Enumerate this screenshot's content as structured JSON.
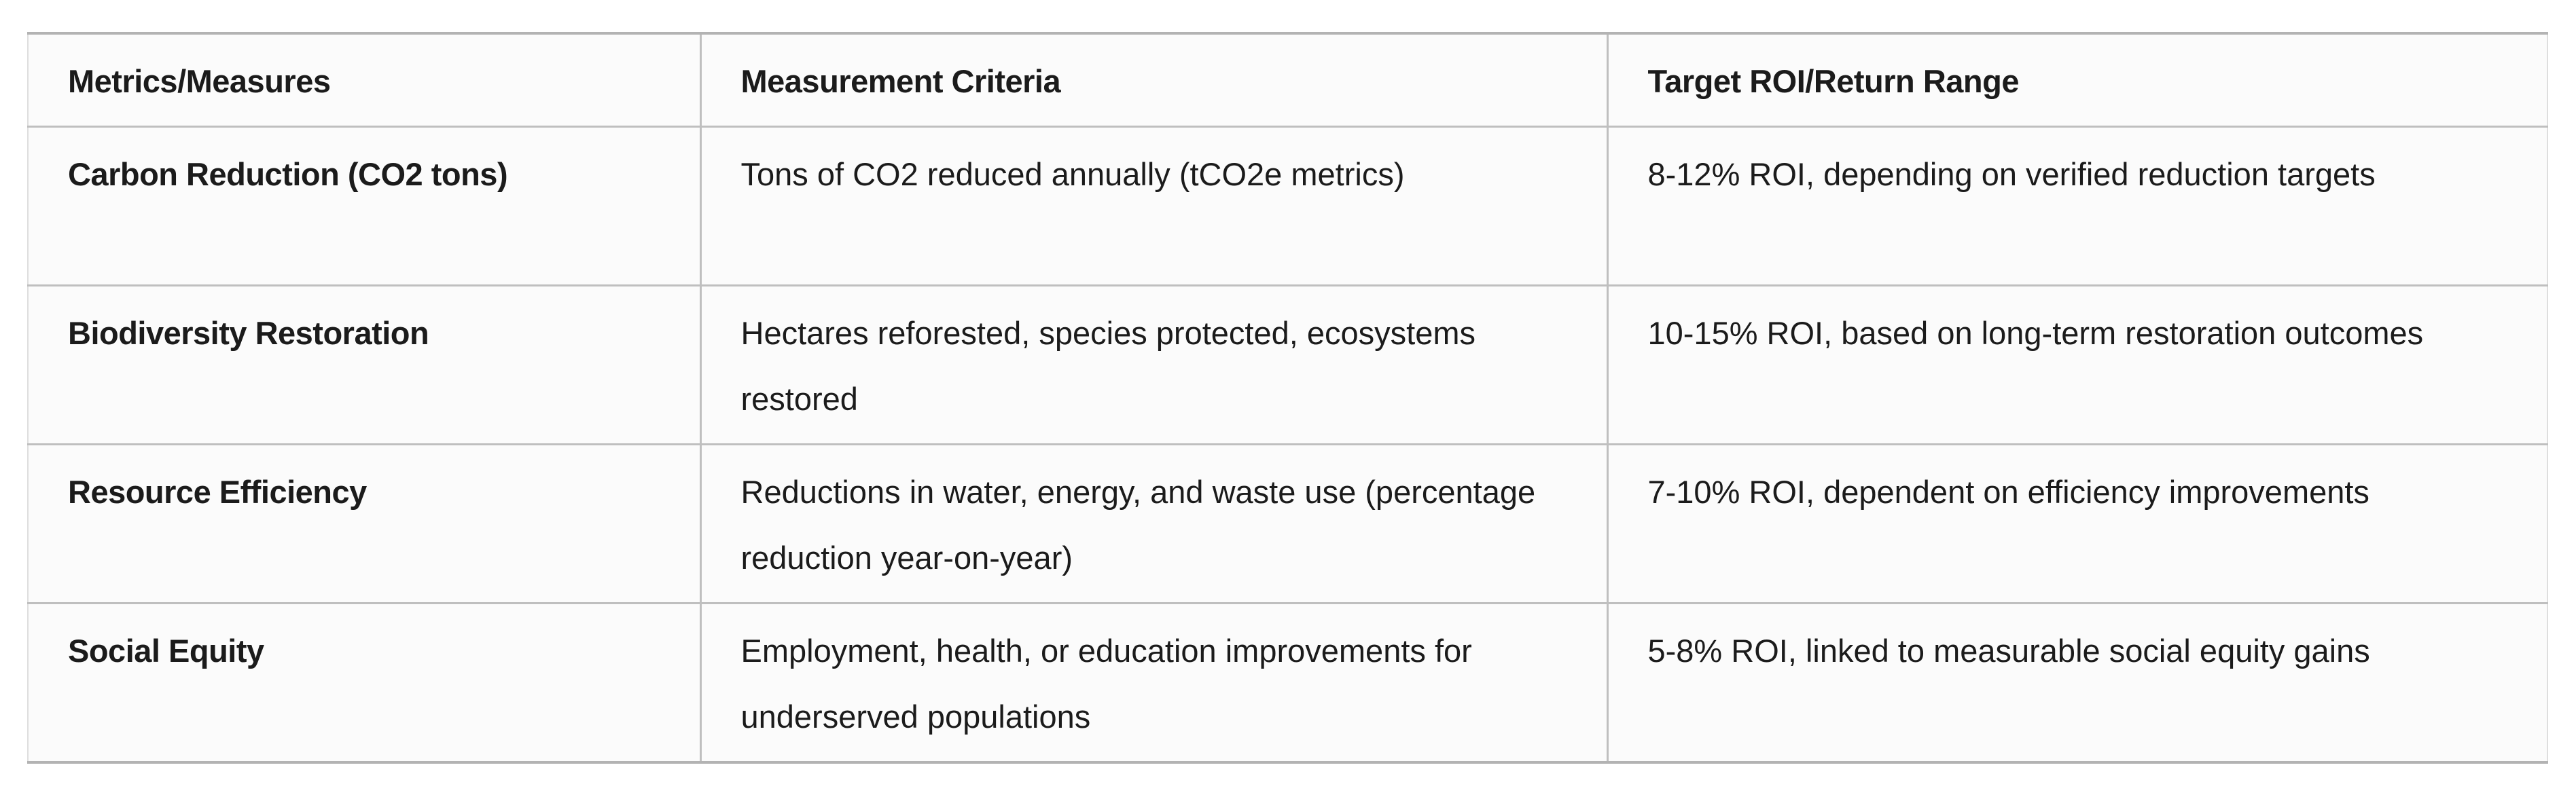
{
  "table": {
    "columns": [
      {
        "label": "Metrics/Measures"
      },
      {
        "label": "Measurement Criteria"
      },
      {
        "label": "Target ROI/Return Range"
      }
    ],
    "rows": [
      {
        "metric": "Carbon Reduction (CO2 tons)",
        "criteria": "Tons of CO2 reduced annually (tCO2e metrics)",
        "roi": "8-12% ROI, depending on verified reduction targets"
      },
      {
        "metric": "Biodiversity Restoration",
        "criteria": "Hectares reforested, species protected, ecosystems restored",
        "roi": "10-15% ROI, based on long-term restoration outcomes"
      },
      {
        "metric": "Resource Efficiency",
        "criteria": "Reductions in water, energy, and waste use (percentage reduction year-on-year)",
        "roi": "7-10% ROI, dependent on efficiency improvements"
      },
      {
        "metric": "Social Equity",
        "criteria": "Employment, health, or education improvements for underserved populations",
        "roi": "5-8% ROI, linked to measurable social equity gains"
      }
    ]
  },
  "colors": {
    "text": "#1b1b1b",
    "cell_background": "#fbfbfb",
    "grid_line": "#bfbfbf",
    "outer_frame": "#b3b3b3",
    "page_background": "#ffffff"
  }
}
